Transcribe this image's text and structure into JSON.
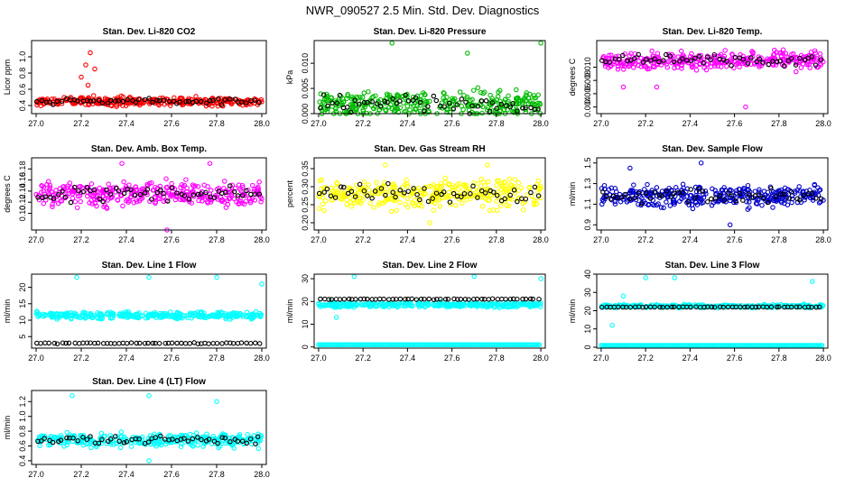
{
  "main_title": "NWR_090527  2.5 Min. Std. Dev. Diagnostics",
  "chart_data": [
    {
      "type": "scatter",
      "title": "Stan. Dev. Li-820 CO2",
      "ylabel": "Licor ppm",
      "xlim": [
        26.98,
        28.02
      ],
      "ylim": [
        0.3,
        1.2
      ],
      "xticks": [
        "27.0",
        "27.2",
        "27.4",
        "27.6",
        "27.8",
        "28.0"
      ],
      "yticks": [
        "0.4",
        "0.6",
        "0.8",
        "1.0"
      ],
      "color": "#ff0000",
      "series_note": "colored = all points, black = subset",
      "base": 0.45,
      "spread": 0.05,
      "outliers": [
        [
          27.2,
          0.75
        ],
        [
          27.22,
          0.9
        ],
        [
          27.24,
          1.05
        ],
        [
          27.26,
          0.85
        ],
        [
          27.23,
          0.65
        ]
      ]
    },
    {
      "type": "scatter",
      "title": "Stan. Dev. Li-820 Pressure",
      "ylabel": "kPa",
      "xlim": [
        26.98,
        28.02
      ],
      "ylim": [
        0.0,
        0.0145
      ],
      "xticks": [
        "27.0",
        "27.2",
        "27.4",
        "27.6",
        "27.8",
        "28.0"
      ],
      "yticks": [
        "0.000",
        "0.005",
        "0.010"
      ],
      "color": "#00bb00",
      "base": 0.002,
      "spread": 0.0025,
      "outliers": [
        [
          27.33,
          0.014
        ],
        [
          27.67,
          0.012
        ],
        [
          28.0,
          0.014
        ]
      ]
    },
    {
      "type": "scatter",
      "title": "Stan. Dev. Li-820 Temp.",
      "ylabel": "degrees C",
      "xlim": [
        26.98,
        28.02
      ],
      "ylim": [
        0.003,
        0.014
      ],
      "xticks": [
        "27.0",
        "27.2",
        "27.4",
        "27.6",
        "27.8",
        "28.0"
      ],
      "yticks": [
        "0.004",
        "0.006",
        "0.008",
        "0.010"
      ],
      "color": "#ff00ff",
      "base": 0.011,
      "spread": 0.0012,
      "outliers": [
        [
          27.1,
          0.007
        ],
        [
          27.65,
          0.004
        ],
        [
          27.25,
          0.007
        ]
      ]
    },
    {
      "type": "scatter",
      "title": "Stan. Dev. Amb. Box Temp.",
      "ylabel": "degrees C",
      "xlim": [
        26.98,
        28.02
      ],
      "ylim": [
        0.07,
        0.2
      ],
      "xticks": [
        "27.0",
        "27.2",
        "27.4",
        "27.6",
        "27.8",
        "28.0"
      ],
      "yticks": [
        "0.10",
        "0.12",
        "0.14",
        "0.16",
        "0.18"
      ],
      "color": "#ff00ff",
      "base": 0.135,
      "spread": 0.02,
      "outliers": [
        [
          27.58,
          0.07
        ],
        [
          27.38,
          0.19
        ],
        [
          27.77,
          0.19
        ]
      ]
    },
    {
      "type": "scatter",
      "title": "Stan. Dev. Gas Stream RH",
      "ylabel": "percent",
      "xlim": [
        26.98,
        28.02
      ],
      "ylim": [
        0.18,
        0.38
      ],
      "xticks": [
        "27.0",
        "27.2",
        "27.4",
        "27.6",
        "27.8",
        "28.0"
      ],
      "yticks": [
        "0.20",
        "0.25",
        "0.30",
        "0.35"
      ],
      "color": "#ffff00",
      "base": 0.28,
      "spread": 0.035,
      "outliers": [
        [
          27.3,
          0.36
        ],
        [
          27.76,
          0.36
        ],
        [
          27.5,
          0.2
        ]
      ]
    },
    {
      "type": "scatter",
      "title": "Stan. Dev. Sample Flow",
      "ylabel": "ml/min",
      "xlim": [
        26.98,
        28.02
      ],
      "ylim": [
        0.85,
        1.55
      ],
      "xticks": [
        "27.0",
        "27.2",
        "27.4",
        "27.6",
        "27.8",
        "28.0"
      ],
      "yticks": [
        "0.9",
        "1.1",
        "1.3",
        "1.5"
      ],
      "color": "#0000cc",
      "base": 1.18,
      "spread": 0.1,
      "outliers": [
        [
          27.45,
          1.5
        ],
        [
          27.58,
          0.9
        ],
        [
          27.13,
          1.45
        ]
      ]
    },
    {
      "type": "scatter",
      "title": "Stan. Dev. Line 1 Flow",
      "ylabel": "ml/min",
      "xlim": [
        26.98,
        28.02
      ],
      "ylim": [
        1.5,
        24
      ],
      "xticks": [
        "27.0",
        "27.2",
        "27.4",
        "27.6",
        "27.8",
        "28.0"
      ],
      "yticks": [
        "5",
        "10",
        "15",
        "20"
      ],
      "color": "#00ffff",
      "base": 11.5,
      "spread": 0.9,
      "black_base": 3.0,
      "outliers": [
        [
          27.18,
          23
        ],
        [
          27.5,
          23
        ],
        [
          27.8,
          23
        ],
        [
          28.0,
          21
        ]
      ]
    },
    {
      "type": "scatter",
      "title": "Stan. Dev. Line 2 Flow",
      "ylabel": "ml/min",
      "xlim": [
        26.98,
        28.02
      ],
      "ylim": [
        -0.5,
        32
      ],
      "xticks": [
        "27.0",
        "27.2",
        "27.4",
        "27.6",
        "27.8",
        "28.0"
      ],
      "yticks": [
        "0",
        "10",
        "20",
        "30"
      ],
      "color": "#00ffff",
      "base": 18.5,
      "spread": 1.0,
      "black_base": 21.0,
      "low_base": 1.0,
      "outliers": [
        [
          27.08,
          13
        ],
        [
          27.16,
          31
        ],
        [
          27.7,
          31
        ],
        [
          28.0,
          30
        ]
      ]
    },
    {
      "type": "scatter",
      "title": "Stan. Dev. Line 3 Flow",
      "ylabel": "ml/min",
      "xlim": [
        26.98,
        28.02
      ],
      "ylim": [
        -0.5,
        40
      ],
      "xticks": [
        "27.0",
        "27.2",
        "27.4",
        "27.6",
        "27.8",
        "28.0"
      ],
      "yticks": [
        "0",
        "10",
        "20",
        "30",
        "40"
      ],
      "color": "#00ffff",
      "base": 22.5,
      "spread": 0.8,
      "black_base": 22.0,
      "low_base": 1.0,
      "outliers": [
        [
          27.1,
          28
        ],
        [
          27.05,
          12
        ],
        [
          27.2,
          38
        ],
        [
          27.33,
          38
        ],
        [
          27.95,
          36
        ]
      ]
    },
    {
      "type": "scatter",
      "title": "Stan. Dev. Line 4 (LT) Flow",
      "ylabel": "ml/min",
      "xlim": [
        26.98,
        28.02
      ],
      "ylim": [
        0.35,
        1.35
      ],
      "xticks": [
        "27.0",
        "27.2",
        "27.4",
        "27.6",
        "27.8",
        "28.0"
      ],
      "yticks": [
        "0.4",
        "0.6",
        "0.8",
        "1.0",
        "1.2"
      ],
      "color": "#00ffff",
      "base": 0.68,
      "spread": 0.08,
      "outliers": [
        [
          27.16,
          1.28
        ],
        [
          27.5,
          1.28
        ],
        [
          27.8,
          1.2
        ],
        [
          27.5,
          0.4
        ]
      ]
    }
  ]
}
